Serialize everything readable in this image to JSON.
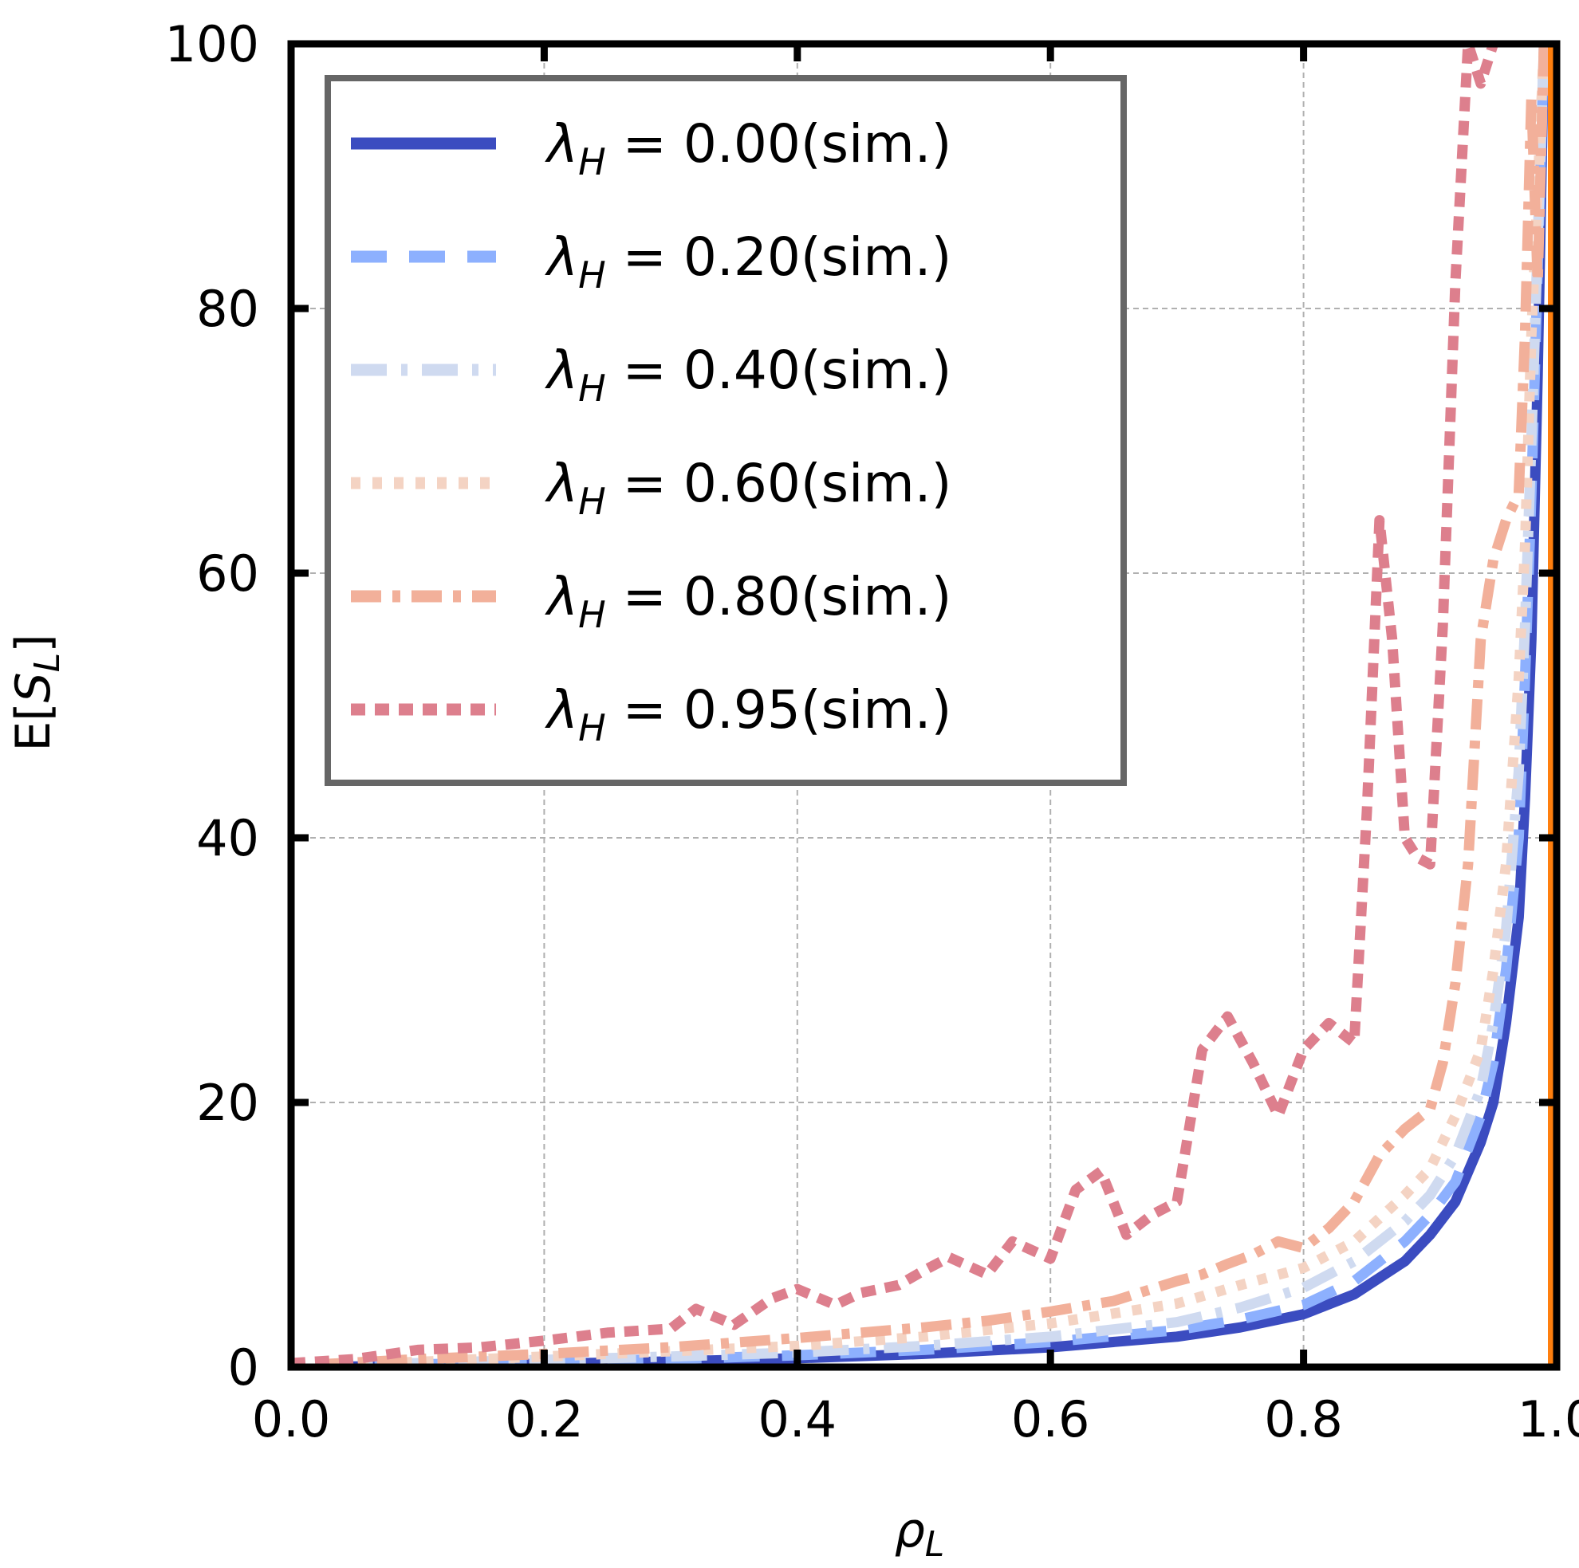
{
  "chart_data": {
    "type": "line",
    "title": "",
    "xlabel": "ρ_L",
    "ylabel": "E[S_L]",
    "xlim": [
      0.0,
      1.0
    ],
    "ylim": [
      0,
      100
    ],
    "grid": true,
    "legend_position": "top-left",
    "x_ticks": [
      "0.0",
      "0.2",
      "0.4",
      "0.6",
      "0.8",
      "1.0"
    ],
    "y_ticks": [
      "0",
      "20",
      "40",
      "60",
      "80",
      "100"
    ],
    "vline": {
      "x": 1.0,
      "color": "#ff7f0e"
    },
    "series": [
      {
        "name": "λ_H = 0.00(sim.)",
        "symbol": "λ",
        "subscript": "H",
        "rest": " = 0.00(sim.)",
        "color": "#3b4cc0",
        "dash": "solid",
        "width": 13,
        "x": [
          0.02,
          0.1,
          0.2,
          0.3,
          0.4,
          0.5,
          0.6,
          0.7,
          0.75,
          0.8,
          0.84,
          0.88,
          0.9,
          0.92,
          0.94,
          0.95,
          0.96,
          0.97,
          0.975,
          0.98,
          0.985,
          0.99
        ],
        "y": [
          0.02,
          0.1,
          0.25,
          0.43,
          0.67,
          1.0,
          1.5,
          2.3,
          3.0,
          4.0,
          5.5,
          8.0,
          10,
          12.5,
          17,
          20,
          26,
          34,
          43,
          55,
          75,
          100
        ]
      },
      {
        "name": "λ_H = 0.20(sim.)",
        "symbol": "λ",
        "subscript": "H",
        "rest": " = 0.20(sim.)",
        "color": "#8db0fe",
        "dash": "45 28",
        "width": 13,
        "x": [
          0.02,
          0.1,
          0.2,
          0.3,
          0.4,
          0.5,
          0.6,
          0.7,
          0.75,
          0.8,
          0.84,
          0.88,
          0.9,
          0.92,
          0.94,
          0.95,
          0.96,
          0.97,
          0.975,
          0.98,
          0.99
        ],
        "y": [
          0.05,
          0.2,
          0.4,
          0.6,
          0.9,
          1.3,
          1.9,
          2.8,
          3.6,
          4.7,
          6.5,
          9.5,
          11.5,
          14,
          19,
          23,
          30,
          40,
          52,
          66,
          100
        ]
      },
      {
        "name": "λ_H = 0.40(sim.)",
        "symbol": "λ",
        "subscript": "H",
        "rest": " = 0.40(sim.)",
        "color": "#cfdaf0",
        "dash": "45 18 8 18",
        "width": 13,
        "x": [
          0.02,
          0.1,
          0.2,
          0.3,
          0.4,
          0.5,
          0.6,
          0.7,
          0.75,
          0.8,
          0.84,
          0.88,
          0.9,
          0.92,
          0.94,
          0.95,
          0.96,
          0.97,
          0.975,
          0.98,
          0.99
        ],
        "y": [
          0.08,
          0.3,
          0.55,
          0.8,
          1.1,
          1.6,
          2.3,
          3.4,
          4.5,
          6.0,
          8.0,
          11,
          13,
          16,
          21,
          26,
          33,
          45,
          56,
          70,
          100
        ]
      },
      {
        "name": "λ_H = 0.60(sim.)",
        "symbol": "λ",
        "subscript": "H",
        "rest": " = 0.60(sim.)",
        "color": "#f4d3c3",
        "dash": "12 15",
        "width": 13,
        "x": [
          0.02,
          0.1,
          0.2,
          0.3,
          0.4,
          0.5,
          0.6,
          0.7,
          0.75,
          0.8,
          0.84,
          0.88,
          0.9,
          0.92,
          0.94,
          0.95,
          0.96,
          0.97,
          0.975,
          0.98,
          0.99
        ],
        "y": [
          0.12,
          0.4,
          0.8,
          1.2,
          1.6,
          2.3,
          3.3,
          4.8,
          6.2,
          7.5,
          9.5,
          13,
          15,
          19,
          24,
          30,
          38,
          52,
          62,
          78,
          100
        ]
      },
      {
        "name": "λ_H = 0.80(sim.)",
        "symbol": "λ",
        "subscript": "H",
        "rest": " = 0.80(sim.)",
        "color": "#f2b09a",
        "dash": "38 14 10 14",
        "width": 13,
        "x": [
          0.02,
          0.1,
          0.2,
          0.3,
          0.4,
          0.5,
          0.55,
          0.6,
          0.65,
          0.7,
          0.72,
          0.74,
          0.76,
          0.78,
          0.8,
          0.82,
          0.84,
          0.86,
          0.88,
          0.9,
          0.91,
          0.92,
          0.93,
          0.94,
          0.95,
          0.96,
          0.97,
          0.975,
          0.98,
          0.985,
          0.99
        ],
        "y": [
          0.2,
          0.6,
          1.0,
          1.5,
          2.2,
          3.0,
          3.5,
          4.2,
          5.0,
          6.5,
          7.0,
          7.8,
          8.5,
          9.5,
          9.0,
          10.5,
          12.5,
          16,
          18,
          19.5,
          23,
          29,
          38,
          55,
          61,
          64,
          66,
          78,
          96,
          82,
          100
        ]
      },
      {
        "name": "λ_H = 0.95(sim.)",
        "symbol": "λ",
        "subscript": "H",
        "rest": " = 0.95(sim.)",
        "color": "#dd7f8d",
        "dash": "18 12",
        "width": 13,
        "x": [
          0.0,
          0.05,
          0.1,
          0.15,
          0.2,
          0.25,
          0.3,
          0.32,
          0.35,
          0.38,
          0.4,
          0.43,
          0.45,
          0.48,
          0.5,
          0.52,
          0.55,
          0.57,
          0.6,
          0.62,
          0.64,
          0.66,
          0.68,
          0.7,
          0.72,
          0.74,
          0.76,
          0.78,
          0.8,
          0.82,
          0.84,
          0.85,
          0.86,
          0.87,
          0.88,
          0.89,
          0.9,
          0.91,
          0.92,
          0.93,
          0.94,
          0.95
        ],
        "y": [
          0.3,
          0.6,
          1.3,
          1.5,
          2.0,
          2.6,
          2.9,
          4.4,
          3.2,
          5.2,
          5.9,
          4.7,
          5.6,
          6.2,
          7.3,
          8.3,
          7.0,
          9.5,
          8.2,
          13.4,
          14.8,
          10.0,
          11.5,
          12.5,
          24,
          26.5,
          23,
          19,
          24,
          26,
          24.5,
          42,
          64,
          55,
          40,
          38.5,
          38,
          56,
          82,
          100,
          97,
          100
        ]
      }
    ]
  }
}
